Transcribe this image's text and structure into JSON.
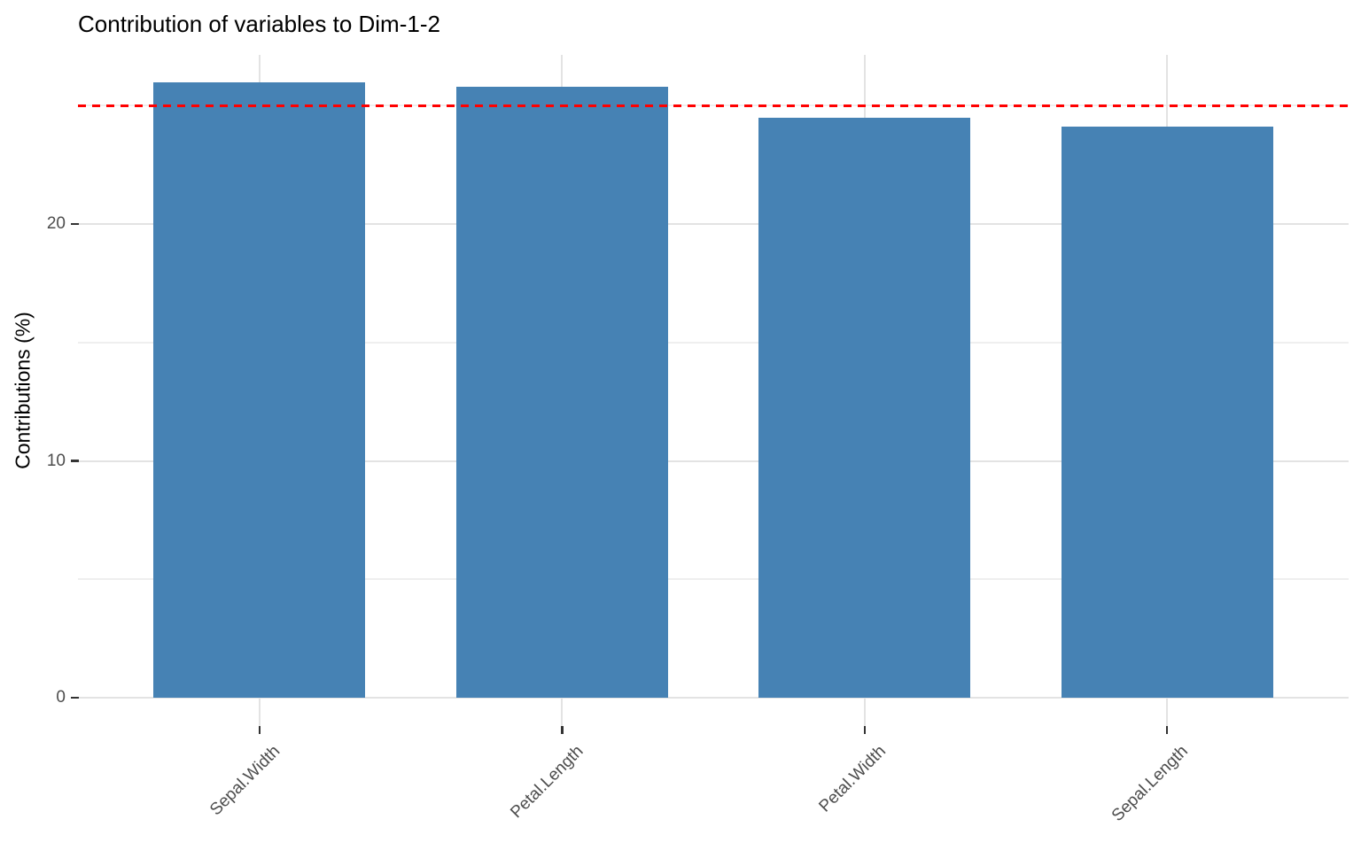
{
  "chart_data": {
    "type": "bar",
    "title": "Contribution of variables to Dim-1-2",
    "ylabel": "Contributions (%)",
    "xlabel": "",
    "categories": [
      "Sepal.Width",
      "Petal.Length",
      "Petal.Width",
      "Sepal.Length"
    ],
    "values": [
      26.0,
      25.8,
      24.5,
      24.1
    ],
    "y_major_ticks": [
      0,
      10,
      20
    ],
    "y_minor_gridlines": [
      5,
      15,
      25
    ],
    "ylim": [
      0,
      27.2
    ],
    "bar_color": "#4682B4",
    "reference_line": {
      "value": 25,
      "color": "#FF0000",
      "style": "dashed"
    },
    "legend": "none",
    "grid": "on"
  },
  "theme": {
    "background": "#FFFFFF",
    "title_color": "#000000",
    "axis_text_color": "#4D4D4D",
    "tick_color": "#333333",
    "grid_major_color": "#E3E3E3",
    "grid_minor_color": "#EFEFEF"
  }
}
